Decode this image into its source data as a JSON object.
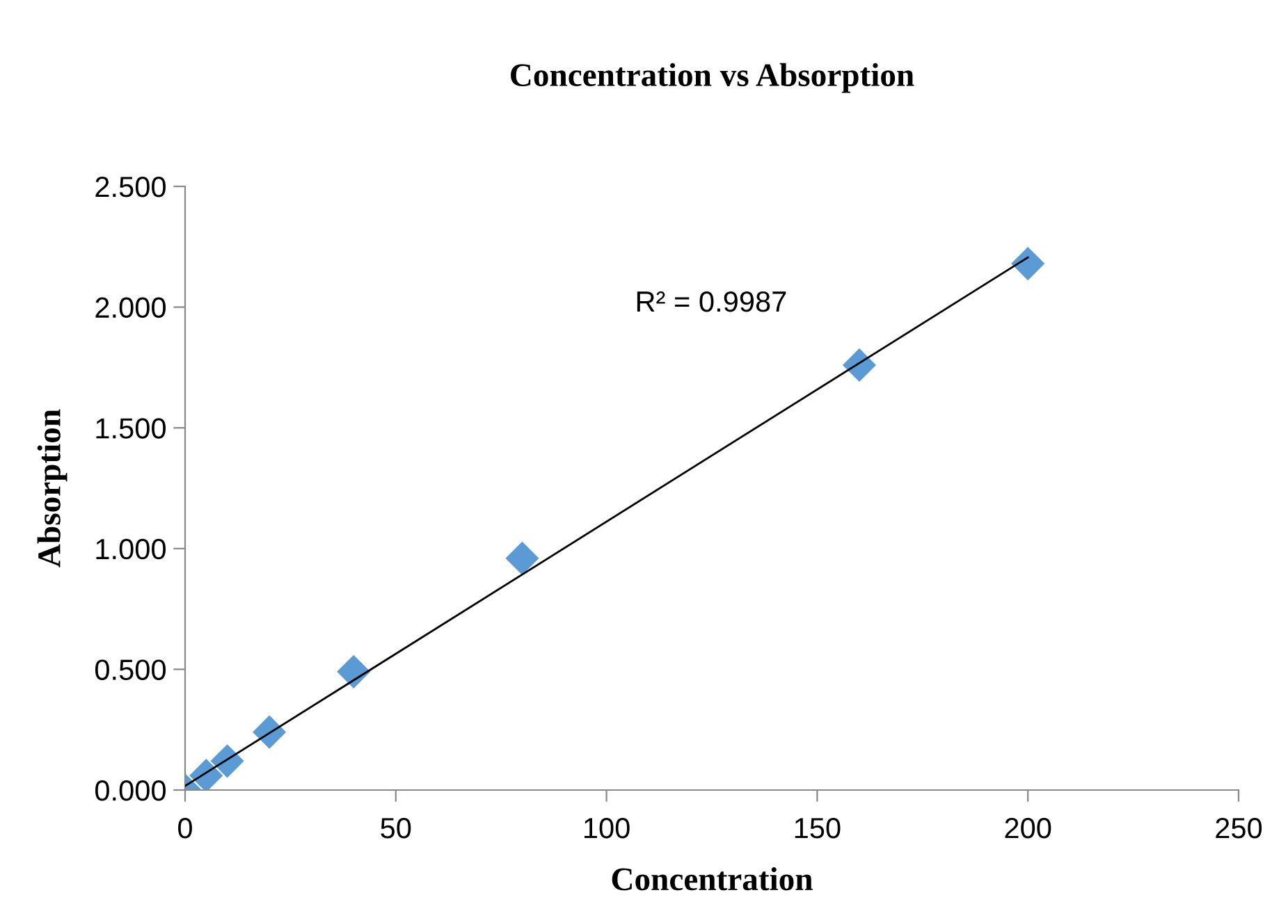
{
  "chart_data": {
    "type": "scatter",
    "title": "Concentration vs Absorption",
    "xlabel": "Concentration",
    "ylabel": "Absorption",
    "xlim": [
      0,
      250
    ],
    "xticks": [
      0,
      50,
      100,
      150,
      200,
      250
    ],
    "ylim": [
      0,
      2.5
    ],
    "yticks": [
      {
        "value": 0,
        "label": "0.000"
      },
      {
        "value": 0.5,
        "label": "0.500"
      },
      {
        "value": 1,
        "label": "1.000"
      },
      {
        "value": 1.5,
        "label": "1.500"
      },
      {
        "value": 2,
        "label": "2.000"
      },
      {
        "value": 2.5,
        "label": "2.500"
      }
    ],
    "grid": false,
    "marker": "diamond",
    "series": [
      {
        "color": "#5b9bd5",
        "x": [
          0,
          5,
          10,
          20,
          40,
          80,
          160,
          200
        ],
        "values": [
          0,
          0.06,
          0.12,
          0.24,
          0.49,
          0.96,
          1.76,
          2.18
        ]
      },
      {
        "type": "line",
        "color": "#000000",
        "x": [
          0,
          200
        ],
        "values": [
          0.017,
          2.206
        ],
        "line_style": "solid",
        "marker": "none"
      }
    ],
    "annotations": [
      "R² = 0.9987"
    ]
  }
}
